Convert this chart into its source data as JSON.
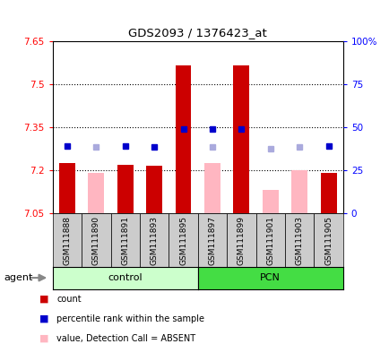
{
  "title": "GDS2093 / 1376423_at",
  "samples": [
    "GSM111888",
    "GSM111890",
    "GSM111891",
    "GSM111893",
    "GSM111895",
    "GSM111897",
    "GSM111899",
    "GSM111901",
    "GSM111903",
    "GSM111905"
  ],
  "groups": [
    "control",
    "control",
    "control",
    "control",
    "control",
    "PCN",
    "PCN",
    "PCN",
    "PCN",
    "PCN"
  ],
  "bar_values": [
    7.225,
    null,
    7.22,
    7.215,
    7.565,
    null,
    7.565,
    null,
    null,
    7.19
  ],
  "absent_values": [
    null,
    7.19,
    null,
    null,
    null,
    7.225,
    null,
    7.13,
    7.2,
    null
  ],
  "rank_present": [
    7.285,
    null,
    7.285,
    7.28,
    7.345,
    7.345,
    7.345,
    null,
    null,
    7.285
  ],
  "rank_absent": [
    null,
    7.28,
    null,
    null,
    null,
    7.28,
    null,
    7.275,
    7.28,
    null
  ],
  "ylim": [
    7.05,
    7.65
  ],
  "yticks": [
    7.05,
    7.2,
    7.35,
    7.5,
    7.65
  ],
  "ytick_labels": [
    "7.05",
    "7.2",
    "7.35",
    "7.5",
    "7.65"
  ],
  "right_yticks": [
    0,
    25,
    50,
    75,
    100
  ],
  "right_ytick_labels": [
    "0",
    "25",
    "50",
    "75",
    "100%"
  ],
  "hlines": [
    7.2,
    7.35,
    7.5
  ],
  "bar_color": "#CC0000",
  "absent_bar_color": "#FFB6C1",
  "rank_present_color": "#0000CC",
  "rank_absent_color": "#AAAADD",
  "control_bg": "#CCFFCC",
  "pcn_bg": "#44DD44",
  "bar_width": 0.55,
  "rank_marker_size": 5,
  "col_bg": "#CCCCCC",
  "plot_bg": "#FFFFFF"
}
